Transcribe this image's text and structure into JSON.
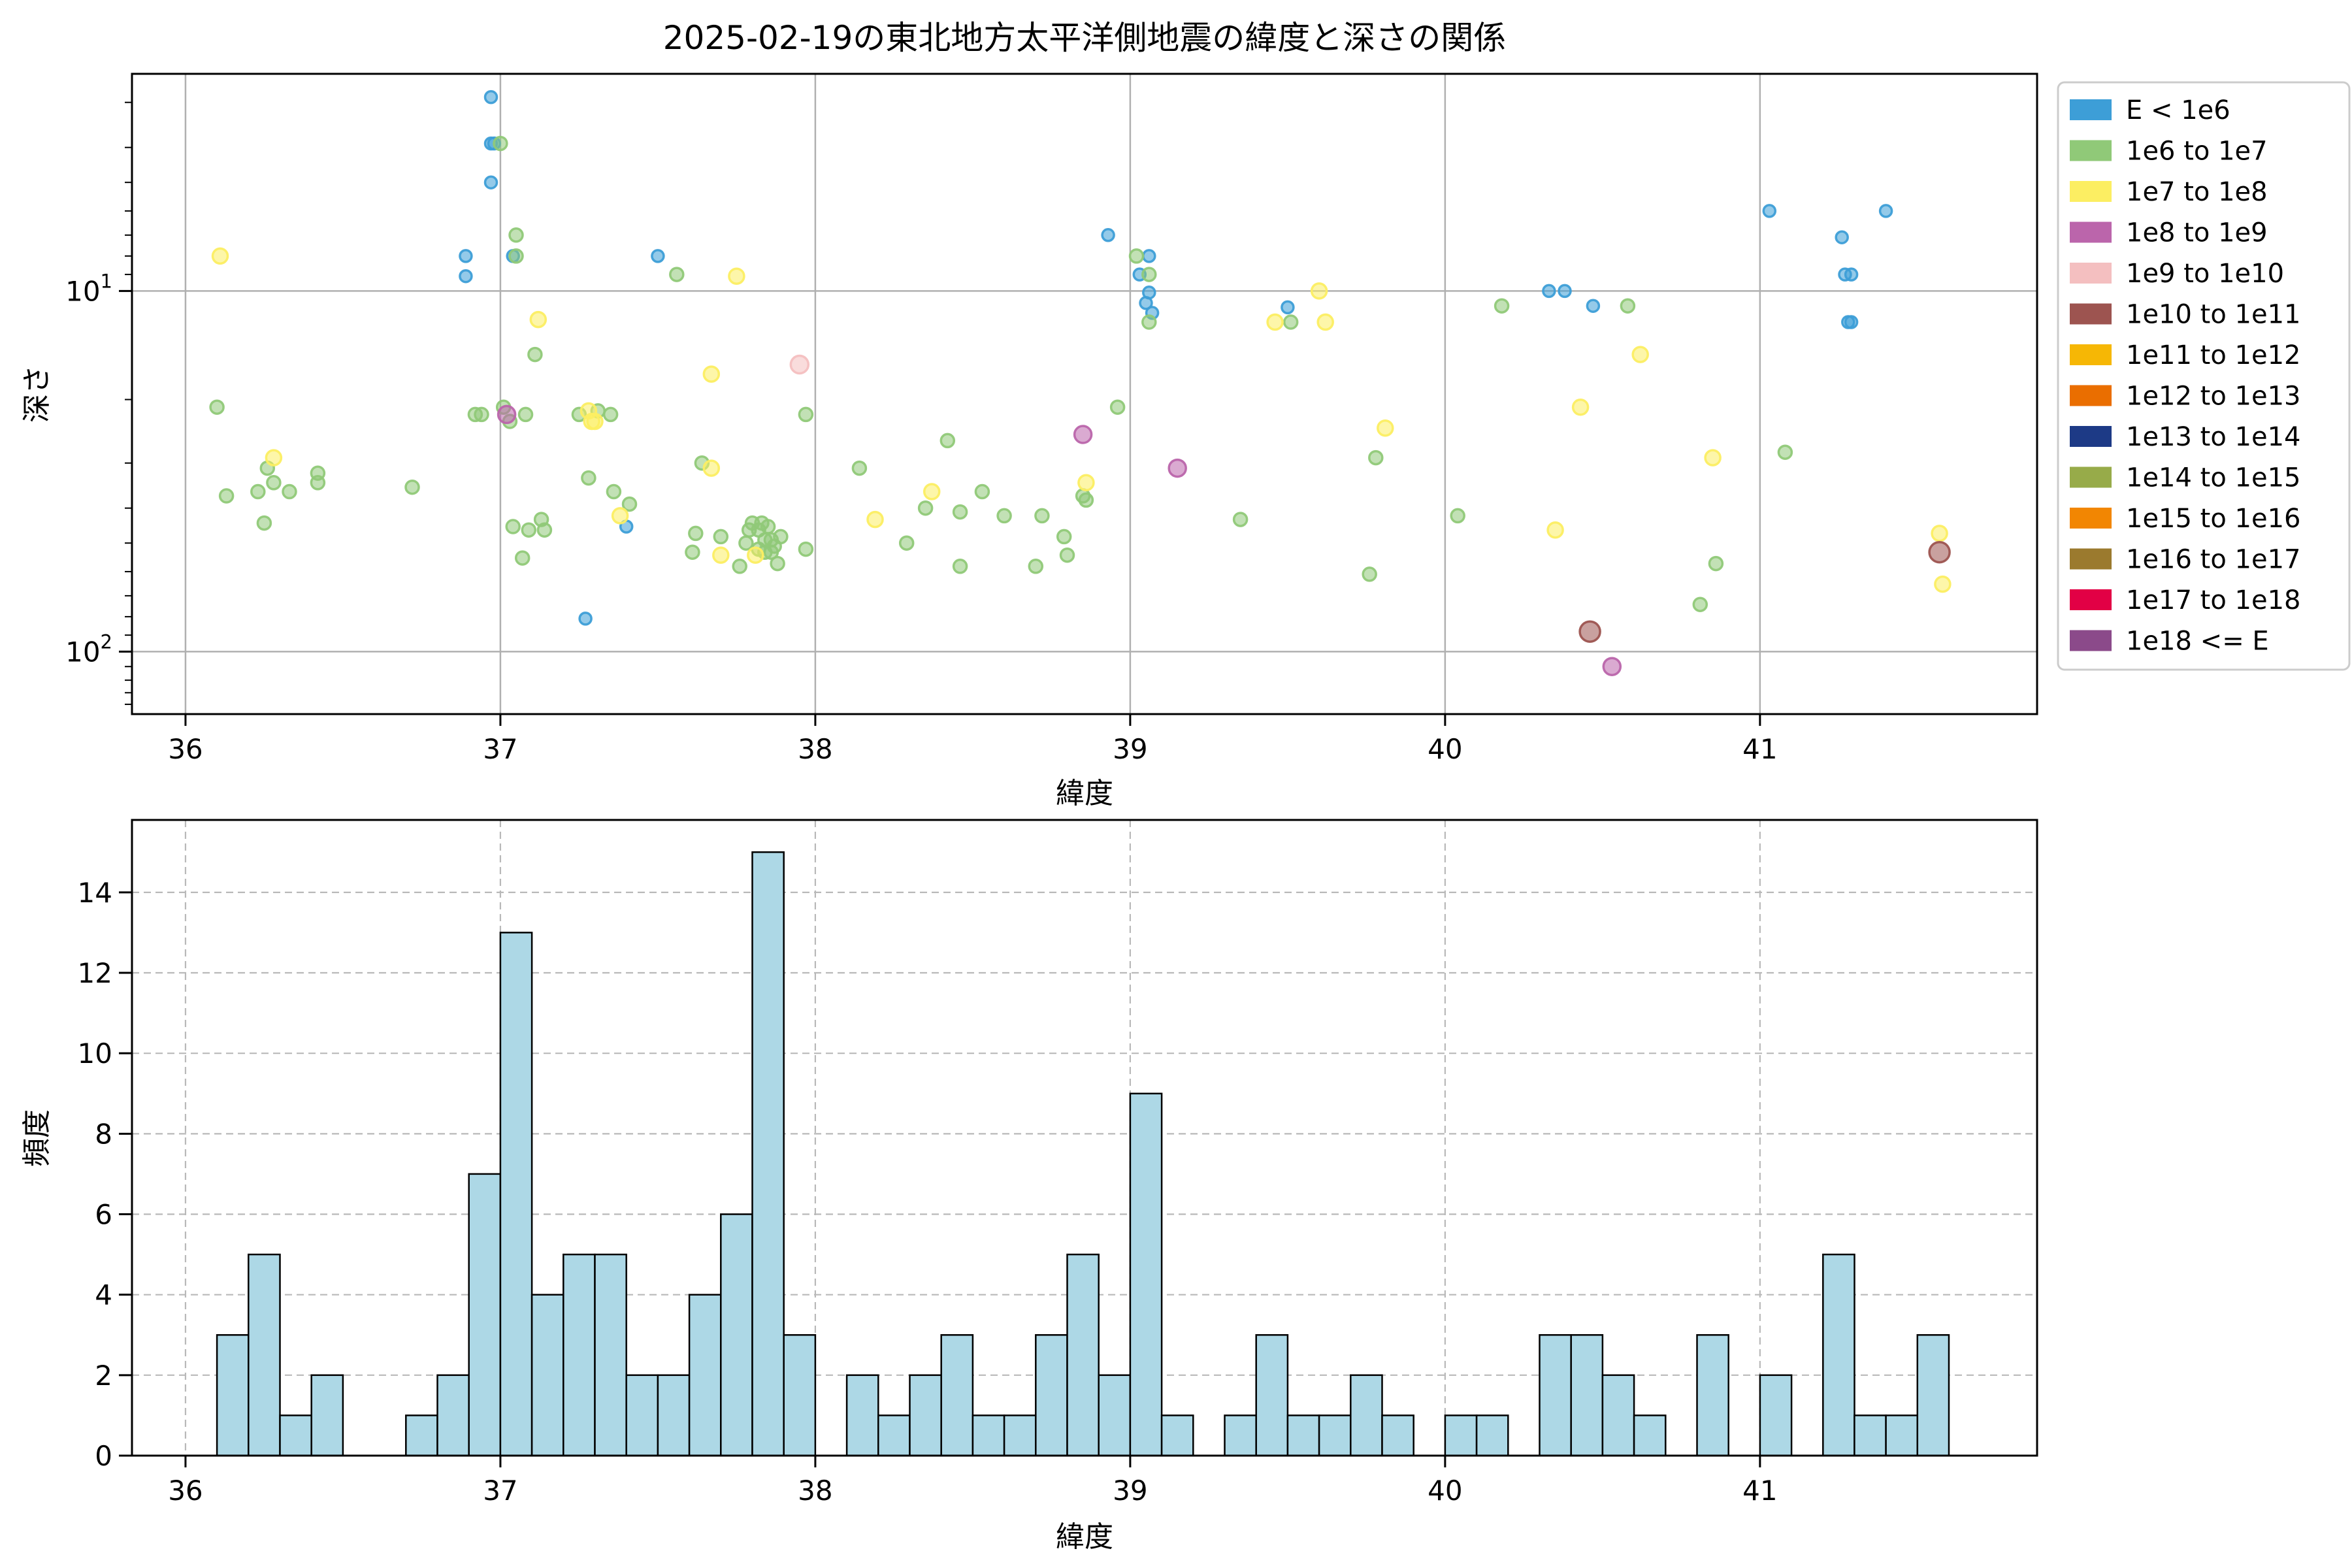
{
  "title": "2025-02-19の東北地方太平洋側地震の緯度と深さの関係",
  "chart_data": [
    {
      "type": "scatter",
      "name": "latitude-vs-depth",
      "xlabel": "緯度",
      "ylabel": "深さ",
      "x_axis": {
        "min": 35.83,
        "max": 41.88,
        "ticks": [
          36,
          37,
          38,
          39,
          40,
          41
        ]
      },
      "y_axis": {
        "scale": "log",
        "inverted": true,
        "min": 2.5,
        "max": 149,
        "major_ticks": [
          {
            "value": 10,
            "base": "10",
            "exp": "1"
          },
          {
            "value": 100,
            "base": "10",
            "exp": "2"
          }
        ],
        "minor_ticks": [
          3,
          4,
          5,
          6,
          7,
          8,
          9,
          20,
          30,
          40,
          50,
          60,
          70,
          80,
          90,
          110,
          120,
          130,
          140
        ]
      },
      "grid": {
        "style": "solid",
        "color": "#b0b0b0"
      },
      "legend_title_classes": [
        {
          "label": "E < 1e6",
          "color": "#3d9ed7"
        },
        {
          "label": "1e6 to 1e7",
          "color": "#90c978"
        },
        {
          "label": "1e7 to 1e8",
          "color": "#fcee62"
        },
        {
          "label": "1e8 to 1e9",
          "color": "#bb65ab"
        },
        {
          "label": "1e9 to 1e10",
          "color": "#f4bfc0"
        },
        {
          "label": "1e10 to 1e11",
          "color": "#9d5450"
        },
        {
          "label": "1e11 to 1e12",
          "color": "#f6b705"
        },
        {
          "label": "1e12 to 1e13",
          "color": "#ea6e00"
        },
        {
          "label": "1e13 to 1e14",
          "color": "#1d3a86"
        },
        {
          "label": "1e14 to 1e15",
          "color": "#97ab49"
        },
        {
          "label": "1e15 to 1e16",
          "color": "#f28602"
        },
        {
          "label": "1e16 to 1e17",
          "color": "#9b7a2e"
        },
        {
          "label": "1e17 to 1e18",
          "color": "#e20045"
        },
        {
          "label": "1e18 <= E",
          "color": "#8b4a8a"
        }
      ],
      "point_radius_by_class": [
        9,
        10,
        11.5,
        13,
        13.5,
        15.5,
        16,
        16,
        16,
        16,
        16,
        16,
        16,
        16
      ],
      "points_lat_depth_class": [
        [
          36.89,
          8.0,
          0
        ],
        [
          36.89,
          9.1,
          0
        ],
        [
          36.97,
          2.9,
          0
        ],
        [
          36.97,
          3.9,
          0
        ],
        [
          36.98,
          3.9,
          0
        ],
        [
          36.97,
          5.0,
          0
        ],
        [
          37.04,
          8.0,
          0
        ],
        [
          37.27,
          81,
          0
        ],
        [
          37.4,
          45,
          0
        ],
        [
          37.5,
          8.0,
          0
        ],
        [
          38.93,
          7.0,
          0
        ],
        [
          39.06,
          8.0,
          0
        ],
        [
          39.03,
          9.0,
          0
        ],
        [
          39.06,
          10.1,
          0
        ],
        [
          39.05,
          10.8,
          0
        ],
        [
          39.07,
          11.5,
          0
        ],
        [
          39.5,
          11.1,
          0
        ],
        [
          40.33,
          10,
          0
        ],
        [
          40.38,
          10,
          0
        ],
        [
          40.47,
          11,
          0
        ],
        [
          41.03,
          6.0,
          0
        ],
        [
          41.4,
          6.0,
          0
        ],
        [
          41.26,
          7.1,
          0
        ],
        [
          41.27,
          9.0,
          0
        ],
        [
          41.29,
          9.0,
          0
        ],
        [
          41.28,
          12.2,
          0
        ],
        [
          41.29,
          12.2,
          0
        ],
        [
          36.1,
          21,
          1
        ],
        [
          36.13,
          37,
          1
        ],
        [
          36.23,
          36,
          1
        ],
        [
          36.26,
          31,
          1
        ],
        [
          36.28,
          34,
          1
        ],
        [
          36.25,
          44,
          1
        ],
        [
          36.33,
          36,
          1
        ],
        [
          36.42,
          32,
          1
        ],
        [
          36.42,
          34,
          1
        ],
        [
          36.72,
          35,
          1
        ],
        [
          36.92,
          22,
          1
        ],
        [
          36.94,
          22,
          1
        ],
        [
          37.0,
          3.9,
          1
        ],
        [
          37.05,
          7.0,
          1
        ],
        [
          37.05,
          8.0,
          1
        ],
        [
          37.01,
          21,
          1
        ],
        [
          37.03,
          23,
          1
        ],
        [
          37.08,
          22,
          1
        ],
        [
          37.07,
          55,
          1
        ],
        [
          37.04,
          45,
          1
        ],
        [
          37.09,
          46,
          1
        ],
        [
          37.11,
          15,
          1
        ],
        [
          37.13,
          43,
          1
        ],
        [
          37.14,
          46,
          1
        ],
        [
          37.25,
          22,
          1
        ],
        [
          37.28,
          33,
          1
        ],
        [
          37.31,
          21.5,
          1
        ],
        [
          37.35,
          22,
          1
        ],
        [
          37.36,
          36,
          1
        ],
        [
          37.41,
          39,
          1
        ],
        [
          37.56,
          9.0,
          1
        ],
        [
          37.61,
          53,
          1
        ],
        [
          37.62,
          47,
          1
        ],
        [
          37.64,
          30,
          1
        ],
        [
          37.7,
          48,
          1
        ],
        [
          37.76,
          58,
          1
        ],
        [
          37.78,
          50,
          1
        ],
        [
          37.79,
          46,
          1
        ],
        [
          37.8,
          44,
          1
        ],
        [
          37.82,
          52,
          1
        ],
        [
          37.82,
          46,
          1
        ],
        [
          37.83,
          44,
          1
        ],
        [
          37.84,
          49,
          1
        ],
        [
          37.84,
          53,
          1
        ],
        [
          37.85,
          45,
          1
        ],
        [
          37.86,
          49,
          1
        ],
        [
          37.86,
          53,
          1
        ],
        [
          37.87,
          51,
          1
        ],
        [
          37.88,
          57,
          1
        ],
        [
          37.89,
          48,
          1
        ],
        [
          37.97,
          22,
          1
        ],
        [
          37.97,
          52,
          1
        ],
        [
          38.14,
          31,
          1
        ],
        [
          38.29,
          50,
          1
        ],
        [
          38.35,
          40,
          1
        ],
        [
          38.42,
          26,
          1
        ],
        [
          38.46,
          41,
          1
        ],
        [
          38.46,
          58,
          1
        ],
        [
          38.53,
          36,
          1
        ],
        [
          38.6,
          42,
          1
        ],
        [
          38.7,
          58,
          1
        ],
        [
          38.72,
          42,
          1
        ],
        [
          38.79,
          48,
          1
        ],
        [
          38.8,
          54,
          1
        ],
        [
          38.85,
          37,
          1
        ],
        [
          38.86,
          38,
          1
        ],
        [
          38.96,
          21,
          1
        ],
        [
          39.02,
          8.0,
          1
        ],
        [
          39.06,
          9.0,
          1
        ],
        [
          39.06,
          12.2,
          1
        ],
        [
          39.35,
          43,
          1
        ],
        [
          39.51,
          12.2,
          1
        ],
        [
          39.76,
          61,
          1
        ],
        [
          39.78,
          29,
          1
        ],
        [
          40.04,
          42,
          1
        ],
        [
          40.18,
          11,
          1
        ],
        [
          40.58,
          11,
          1
        ],
        [
          40.81,
          74,
          1
        ],
        [
          40.86,
          57,
          1
        ],
        [
          41.08,
          28,
          1
        ],
        [
          36.11,
          8.0,
          2
        ],
        [
          36.28,
          29,
          2
        ],
        [
          37.12,
          12,
          2
        ],
        [
          37.28,
          21.5,
          2
        ],
        [
          37.29,
          23,
          2
        ],
        [
          37.3,
          23,
          2
        ],
        [
          37.38,
          42,
          2
        ],
        [
          37.67,
          17,
          2
        ],
        [
          37.67,
          31,
          2
        ],
        [
          37.75,
          9.1,
          2
        ],
        [
          37.7,
          54,
          2
        ],
        [
          37.81,
          54,
          2
        ],
        [
          38.19,
          43,
          2
        ],
        [
          38.37,
          36,
          2
        ],
        [
          38.86,
          34,
          2
        ],
        [
          39.46,
          12.2,
          2
        ],
        [
          39.6,
          10,
          2
        ],
        [
          39.62,
          12.2,
          2
        ],
        [
          39.81,
          24,
          2
        ],
        [
          40.35,
          46,
          2
        ],
        [
          40.43,
          21,
          2
        ],
        [
          40.62,
          15,
          2
        ],
        [
          40.85,
          29,
          2
        ],
        [
          41.57,
          47,
          2
        ],
        [
          41.58,
          65,
          2
        ],
        [
          37.02,
          22,
          3
        ],
        [
          38.85,
          25,
          3
        ],
        [
          39.15,
          31,
          3
        ],
        [
          40.53,
          110,
          3
        ],
        [
          37.95,
          16,
          4
        ],
        [
          40.46,
          88,
          5
        ],
        [
          41.57,
          53,
          5
        ]
      ]
    },
    {
      "type": "bar",
      "name": "latitude-histogram",
      "xlabel": "緯度",
      "ylabel": "頻度",
      "x_axis": {
        "min": 35.83,
        "max": 41.88,
        "ticks": [
          36,
          37,
          38,
          39,
          40,
          41
        ]
      },
      "y_axis": {
        "min": 0,
        "max": 15.8,
        "ticks": [
          0,
          2,
          4,
          6,
          8,
          10,
          12,
          14
        ]
      },
      "grid": {
        "style": "dashed",
        "color": "#b9b9b9"
      },
      "bin_start": 36.1,
      "bin_width": 0.1,
      "counts": [
        3,
        5,
        1,
        2,
        0,
        0,
        1,
        2,
        7,
        13,
        4,
        5,
        5,
        2,
        2,
        4,
        6,
        15,
        3,
        0,
        2,
        1,
        2,
        3,
        1,
        1,
        3,
        5,
        2,
        9,
        1,
        0,
        1,
        3,
        1,
        1,
        2,
        1,
        0,
        1,
        1,
        0,
        3,
        3,
        2,
        1,
        0,
        3,
        0,
        2,
        0,
        5,
        1,
        1,
        3
      ],
      "bar_color": "#add8e6",
      "bar_edge_color": "#000000"
    }
  ]
}
